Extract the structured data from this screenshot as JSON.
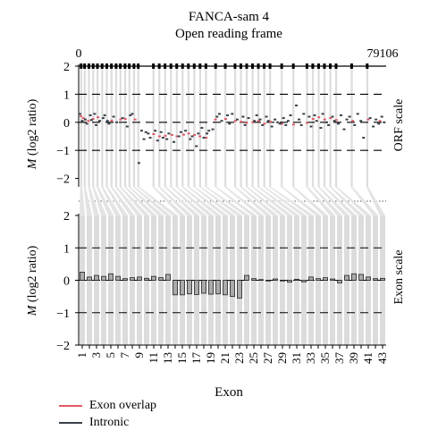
{
  "chart_data": [
    {
      "type": "scatter",
      "title": "FANCA-sam 4",
      "subtitle": "Open reading frame",
      "xlabel": "",
      "ylabel": "M (log2 ratio)",
      "ylabel_italic": "M",
      "ylabel_rest": " (log2 ratio)",
      "side_label": "ORF scale",
      "x_start_label": "0",
      "x_end_label": "79106",
      "xlim": [
        0,
        79106
      ],
      "ylim": [
        -2.3,
        2.0
      ],
      "yticks": [
        "2",
        "1",
        "0",
        "−1",
        "−2"
      ],
      "ytick_values": [
        2,
        1,
        0,
        -1,
        -2
      ],
      "dashed_reference_lines": [
        1,
        0,
        -1
      ],
      "exon_starts": [
        400,
        1300,
        2400,
        3500,
        4600,
        5800,
        7000,
        8200,
        9400,
        10500,
        11700,
        12800,
        14000,
        15100,
        19000,
        20500,
        22000,
        23500,
        25000,
        26500,
        28000,
        29500,
        31000,
        32500,
        35000,
        37500,
        40000,
        41500,
        43000,
        44500,
        46000,
        47500,
        49000,
        52000,
        55000,
        58500,
        60000,
        61500,
        63000,
        64500,
        66000,
        70000,
        74000
      ],
      "series": [
        {
          "name": "Exon overlap",
          "color": "#e05a67",
          "x": [
            600,
            1200,
            2500,
            3700,
            5000,
            8500,
            10800,
            12000,
            14500,
            19300,
            20800,
            22300,
            24000,
            25300,
            27000,
            28300,
            29800,
            31200,
            32800,
            35200,
            37800,
            40300,
            41800,
            43200,
            44800,
            46300,
            47800,
            49300,
            52300,
            55300,
            58800,
            60300,
            61800,
            63300,
            64800,
            66300,
            70500,
            74500,
            77500
          ],
          "y": [
            0.22,
            0.15,
            0.05,
            0.12,
            0.18,
            0.06,
            0.1,
            0.12,
            0.1,
            -0.42,
            -0.5,
            -0.48,
            -0.45,
            -0.5,
            -0.44,
            -0.4,
            -0.45,
            -0.5,
            -0.55,
            0.1,
            0.12,
            0.05,
            0.02,
            -0.02,
            0.0,
            0.05,
            -0.05,
            0.02,
            -0.05,
            -0.08,
            -0.02,
            0.12,
            0.18,
            0.1,
            0.15,
            0.08,
            0.05,
            0.1,
            0.05
          ]
        },
        {
          "name": "Intronic",
          "color": "#3a4048",
          "x": [
            300,
            900,
            1700,
            2100,
            3000,
            3300,
            4100,
            4500,
            5400,
            6300,
            6700,
            7400,
            7800,
            9000,
            9800,
            11300,
            12500,
            13300,
            13800,
            15500,
            16200,
            16800,
            17300,
            17900,
            18400,
            19700,
            20300,
            21200,
            21700,
            22700,
            23200,
            24500,
            25800,
            26300,
            27500,
            28700,
            29200,
            30300,
            30800,
            31700,
            32200,
            33000,
            33500,
            34500,
            35600,
            36200,
            36800,
            38300,
            38800,
            39500,
            40800,
            42300,
            42800,
            43700,
            45200,
            45800,
            46700,
            47300,
            48300,
            48800,
            49700,
            50500,
            51200,
            51800,
            52700,
            53300,
            53900,
            54500,
            56000,
            56700,
            57300,
            57900,
            59300,
            59800,
            60700,
            61200,
            62300,
            62800,
            63800,
            64300,
            65300,
            65800,
            66800,
            67500,
            68300,
            69000,
            69700,
            71000,
            71800,
            72600,
            73300,
            75000,
            75800,
            76500,
            77200,
            78000,
            78600
          ],
          "y": [
            0.3,
            0.05,
            0.1,
            -0.05,
            0.25,
            0.08,
            0.3,
            -0.1,
            0.05,
            0.15,
            0.25,
            0.05,
            -0.05,
            0.2,
            0.0,
            0.15,
            -0.15,
            0.25,
            0.3,
            -1.45,
            -0.3,
            -0.6,
            -0.35,
            -0.4,
            -0.55,
            -0.3,
            -0.65,
            -0.35,
            -0.55,
            -0.6,
            -0.4,
            -0.7,
            -0.5,
            -0.35,
            -0.3,
            -0.6,
            -0.5,
            -0.85,
            -0.4,
            -0.2,
            -0.55,
            -0.4,
            -0.3,
            -0.25,
            0.2,
            0.3,
            0.05,
            0.25,
            -0.05,
            0.3,
            0.1,
            0.2,
            -0.1,
            0.15,
            0.05,
            0.25,
            0.1,
            -0.1,
            0.2,
            0.05,
            -0.15,
            0.1,
            0.0,
            -0.05,
            0.15,
            -0.1,
            0.05,
            0.25,
            0.6,
            0.1,
            -0.1,
            0.3,
            0.2,
            -0.15,
            0.25,
            0.05,
            -0.2,
            0.3,
            0.0,
            -0.1,
            0.2,
            0.05,
            -0.05,
            0.25,
            -0.25,
            0.1,
            0.2,
            -0.1,
            0.3,
            0.05,
            -0.55,
            0.15,
            -0.15,
            0.1,
            -0.05,
            0.2,
            0.0
          ]
        }
      ]
    },
    {
      "type": "bar",
      "title": "",
      "xlabel": "Exon",
      "ylabel": "M (log2 ratio)",
      "ylabel_italic": "M",
      "ylabel_rest": " (log2 ratio)",
      "side_label": "Exon scale",
      "ylim": [
        -2.0,
        2.0
      ],
      "yticks": [
        "2",
        "1",
        "0",
        "−1",
        "−2"
      ],
      "ytick_values": [
        2,
        1,
        0,
        -1,
        -2
      ],
      "dashed_reference_lines": [
        1,
        0,
        -1
      ],
      "bar_color": "#aaaaaa",
      "categories": [
        "1",
        "2",
        "3",
        "4",
        "5",
        "6",
        "7",
        "8",
        "9",
        "10",
        "11",
        "12",
        "13",
        "14",
        "15",
        "16",
        "17",
        "18",
        "19",
        "20",
        "21",
        "22",
        "23",
        "24",
        "25",
        "26",
        "27",
        "28",
        "29",
        "30",
        "31",
        "32",
        "33",
        "34",
        "35",
        "36",
        "37",
        "38",
        "39",
        "40",
        "41",
        "42",
        "43"
      ],
      "tick_labels": [
        "1",
        "3",
        "5",
        "7",
        "9",
        "11",
        "13",
        "15",
        "17",
        "19",
        "21",
        "23",
        "25",
        "27",
        "29",
        "31",
        "33",
        "35",
        "37",
        "39",
        "41",
        "43"
      ],
      "values": [
        0.25,
        0.1,
        0.15,
        0.12,
        0.2,
        0.12,
        0.05,
        0.08,
        0.1,
        0.06,
        0.12,
        0.08,
        0.18,
        -0.45,
        -0.45,
        -0.42,
        -0.44,
        -0.4,
        -0.43,
        -0.42,
        -0.45,
        -0.5,
        -0.55,
        0.15,
        0.05,
        0.02,
        -0.02,
        0.04,
        -0.02,
        -0.06,
        0.03,
        -0.05,
        0.1,
        0.05,
        0.08,
        0.04,
        -0.08,
        0.15,
        0.2,
        0.18,
        0.1,
        0.05,
        0.06
      ]
    }
  ],
  "legend": {
    "items": [
      {
        "label": "Exon overlap",
        "color": "#e05a67"
      },
      {
        "label": "Intronic",
        "color": "#3a4048"
      }
    ]
  }
}
